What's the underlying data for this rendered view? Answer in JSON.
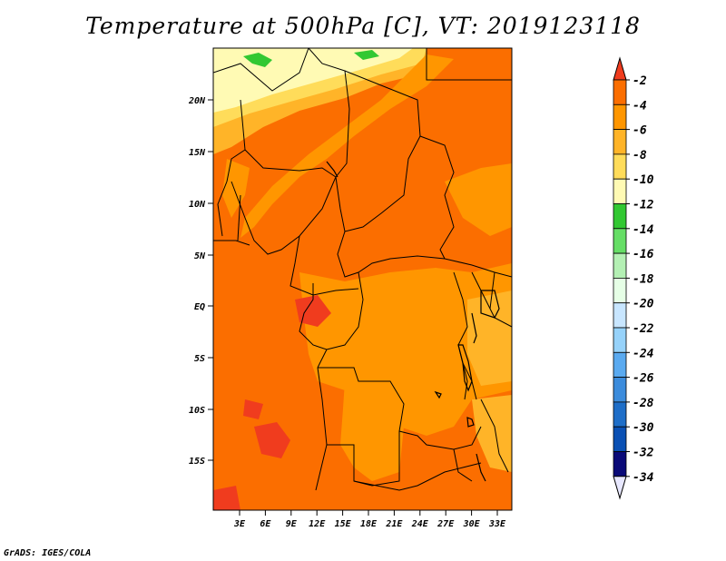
{
  "title": "Temperature at 500hPa [C], VT: 2019123118",
  "credit": "GrADS: IGES/COLA",
  "map": {
    "lat_labels": [
      "20N",
      "15N",
      "10N",
      "5N",
      "EQ",
      "5S",
      "10S",
      "15S"
    ],
    "lon_labels": [
      "3E",
      "6E",
      "9E",
      "12E",
      "15E",
      "18E",
      "21E",
      "24E",
      "27E",
      "30E",
      "33E"
    ]
  },
  "colorbar": {
    "labels": [
      "-2",
      "-4",
      "-6",
      "-8",
      "-10",
      "-12",
      "-14",
      "-16",
      "-18",
      "-20",
      "-22",
      "-24",
      "-26",
      "-28",
      "-30",
      "-32",
      "-34"
    ],
    "colors": [
      "#f03c1e",
      "#fb6e00",
      "#ff9600",
      "#ffb428",
      "#ffdc5a",
      "#fffab4",
      "#32c832",
      "#66de66",
      "#b4f0b4",
      "#e6ffe6",
      "#c8e6ff",
      "#96d2fa",
      "#5aaaf0",
      "#3c8cdc",
      "#1e6ec8",
      "#0a50b4",
      "#0a0a78"
    ],
    "top_color": "#f03c1e",
    "bottom_color": "#e8e8ff"
  }
}
